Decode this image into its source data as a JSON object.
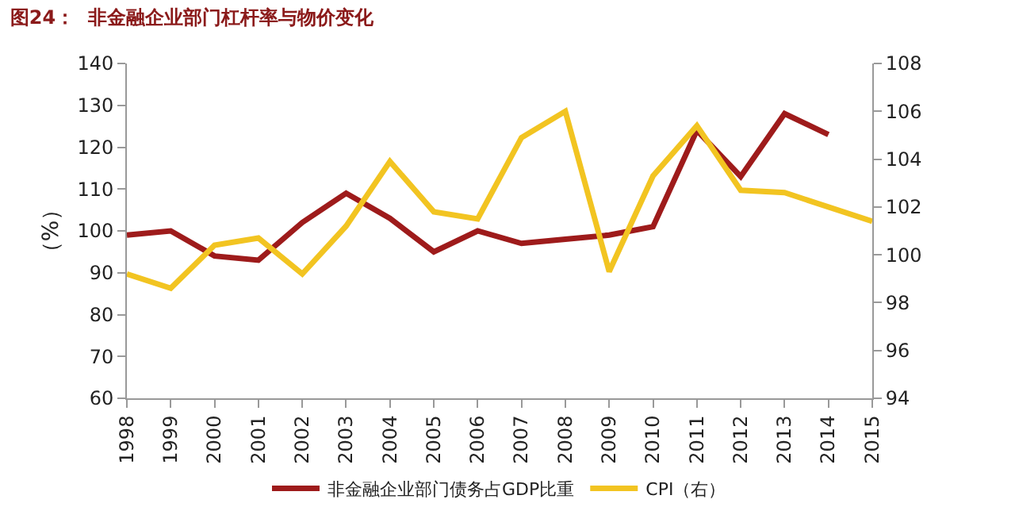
{
  "chart_data": {
    "type": "line",
    "title": "图24：  非金融企业部门杠杆率与物价变化",
    "ylabel": "（%）",
    "categories": [
      "1998",
      "1999",
      "2000",
      "2001",
      "2002",
      "2003",
      "2004",
      "2005",
      "2006",
      "2007",
      "2008",
      "2009",
      "2010",
      "2011",
      "2012",
      "2013",
      "2014",
      "2015"
    ],
    "series": [
      {
        "name": "非金融企业部门债务占GDP比重",
        "color": "#9e1b1b",
        "values": [
          99,
          100,
          94,
          93,
          102,
          109,
          103,
          95,
          100,
          97,
          98,
          99,
          101,
          124,
          113,
          128,
          123,
          null
        ]
      },
      {
        "name": "CPI（右）",
        "color": "#f2c421",
        "axis": "y2",
        "values": [
          99.2,
          98.6,
          100.4,
          100.7,
          99.2,
          101.2,
          103.9,
          101.8,
          101.5,
          104.9,
          106.0,
          99.3,
          103.3,
          105.4,
          102.7,
          102.6,
          102.0,
          101.4
        ]
      }
    ],
    "ylim": [
      60,
      140
    ],
    "yticks": [
      60,
      70,
      80,
      90,
      100,
      110,
      120,
      130,
      140
    ],
    "y2lim": [
      94,
      108
    ],
    "y2ticks": [
      94,
      96,
      98,
      100,
      102,
      104,
      106,
      108
    ],
    "legend": "bottom",
    "marker": "none",
    "line_style": "solid"
  }
}
